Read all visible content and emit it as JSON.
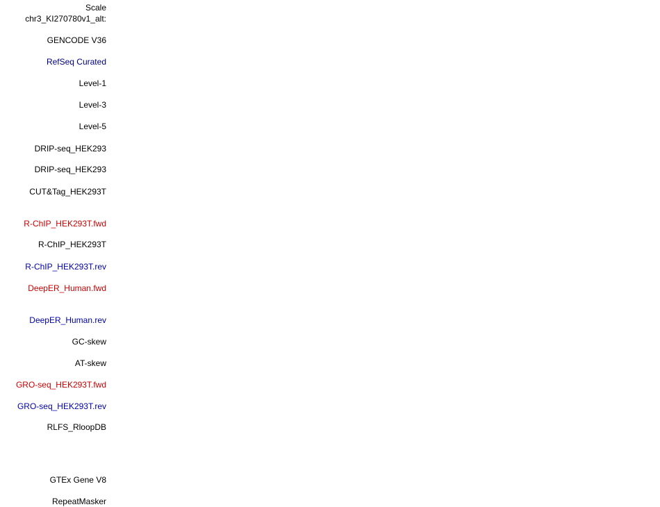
{
  "colors": {
    "default_text": "#000000",
    "fwd_strand": "#cc0000",
    "rev_strand": "#0000aa",
    "refseq": "#000080",
    "background": "#ffffff"
  },
  "tracks": [
    {
      "id": "scale",
      "label": "Scale",
      "color": "#000000"
    },
    {
      "id": "position",
      "label": "chr3_KI270780v1_alt:",
      "color": "#000000"
    },
    {
      "id": "gencode",
      "label": "GENCODE V36",
      "color": "#000000"
    },
    {
      "id": "refseq",
      "label": "RefSeq Curated",
      "color": "#000080"
    },
    {
      "id": "level-1",
      "label": "Level-1",
      "color": "#000000"
    },
    {
      "id": "level-3",
      "label": "Level-3",
      "color": "#000000"
    },
    {
      "id": "level-5",
      "label": "Level-5",
      "color": "#000000"
    },
    {
      "id": "drip-seq-1",
      "label": "DRIP-seq_HEK293",
      "color": "#000000"
    },
    {
      "id": "drip-seq-2",
      "label": "DRIP-seq_HEK293",
      "color": "#000000"
    },
    {
      "id": "cut-tag",
      "label": "CUT&Tag_HEK293T",
      "color": "#000000"
    },
    {
      "id": "rchip-fwd",
      "label": "R-ChIP_HEK293T.fwd",
      "color": "#cc0000"
    },
    {
      "id": "rchip",
      "label": "R-ChIP_HEK293T",
      "color": "#000000"
    },
    {
      "id": "rchip-rev",
      "label": "R-ChIP_HEK293T.rev",
      "color": "#0000aa"
    },
    {
      "id": "deeper-fwd",
      "label": "DeepER_Human.fwd",
      "color": "#cc0000"
    },
    {
      "id": "deeper-rev",
      "label": "DeepER_Human.rev",
      "color": "#0000aa"
    },
    {
      "id": "gc-skew",
      "label": "GC-skew",
      "color": "#000000"
    },
    {
      "id": "at-skew",
      "label": "AT-skew",
      "color": "#000000"
    },
    {
      "id": "groseq-fwd",
      "label": "GRO-seq_HEK293T.fwd",
      "color": "#cc0000"
    },
    {
      "id": "groseq-rev",
      "label": "GRO-seq_HEK293T.rev",
      "color": "#0000aa"
    },
    {
      "id": "rlfs",
      "label": "RLFS_RloopDB",
      "color": "#000000"
    },
    {
      "id": "gtex",
      "label": "GTEx Gene V8",
      "color": "#000000"
    },
    {
      "id": "repeatmasker",
      "label": "RepeatMasker",
      "color": "#000000"
    }
  ]
}
